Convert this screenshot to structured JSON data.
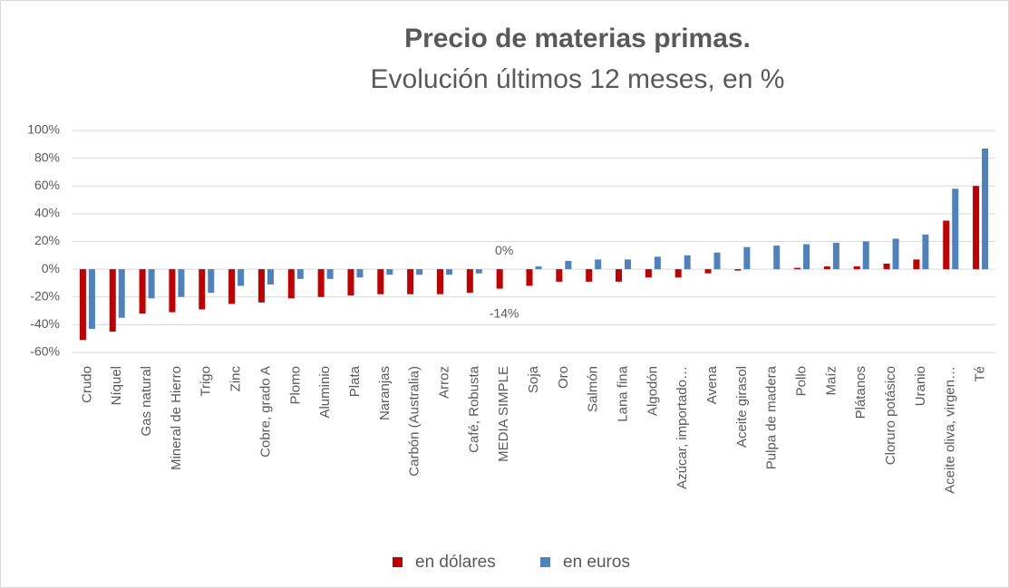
{
  "chart_data": {
    "type": "bar",
    "title": "Precio de materias primas.",
    "subtitle": "Evolución últimos 12 meses, en %",
    "categories": [
      "Crudo",
      "Níquel",
      "Gas natural",
      "Mineral de Hierro",
      "Trigo",
      "Zinc",
      "Cobre, grado A",
      "Plomo",
      "Aluminio",
      "Plata",
      "Naranjas",
      "Carbón (Australia)",
      "Arroz",
      "Café, Robusta",
      "MEDIA SIMPLE",
      "Soja",
      "Oro",
      "Salmón",
      "Lana fina",
      "Algodón",
      "Azúcar, importado…",
      "Avena",
      "Aceite girasol",
      "Pulpa de madera",
      "Pollo",
      "Maíz",
      "Plátanos",
      "Cloruro potásico",
      "Uranio",
      "Aceite oliva, virgen…",
      "Té"
    ],
    "series": [
      {
        "name": "en dólares",
        "color": "#c00000",
        "values": [
          -51,
          -45,
          -32,
          -31,
          -29,
          -25,
          -24,
          -21,
          -20,
          -19,
          -18,
          -18,
          -18,
          -17,
          -14,
          -12,
          -9,
          -9,
          -9,
          -6,
          -6,
          -3,
          -1,
          0,
          1,
          2,
          2,
          4,
          7,
          35,
          60
        ],
        "value_labels": [
          null,
          null,
          null,
          null,
          null,
          null,
          null,
          null,
          null,
          null,
          null,
          null,
          null,
          null,
          "-14%",
          null,
          null,
          null,
          null,
          null,
          null,
          null,
          null,
          null,
          null,
          null,
          null,
          null,
          null,
          null,
          null
        ]
      },
      {
        "name": "en euros",
        "color": "#4f81bd",
        "values": [
          -43,
          -35,
          -21,
          -20,
          -17,
          -12,
          -11,
          -7,
          -7,
          -6,
          -4,
          -4,
          -4,
          -3,
          0,
          2,
          6,
          7,
          7,
          9,
          10,
          12,
          16,
          17,
          18,
          19,
          20,
          22,
          25,
          58,
          87
        ],
        "value_labels": [
          null,
          null,
          null,
          null,
          null,
          null,
          null,
          null,
          null,
          null,
          null,
          null,
          null,
          null,
          "0%",
          null,
          null,
          null,
          null,
          null,
          null,
          null,
          null,
          null,
          null,
          null,
          null,
          null,
          null,
          null,
          null
        ]
      }
    ],
    "ylim": [
      -60,
      100
    ],
    "yticks": [
      {
        "value": -60,
        "label": "-60%"
      },
      {
        "value": -40,
        "label": "-40%"
      },
      {
        "value": -20,
        "label": "-20%"
      },
      {
        "value": 0,
        "label": "0%"
      },
      {
        "value": 20,
        "label": "20%"
      },
      {
        "value": 40,
        "label": "40%"
      },
      {
        "value": 60,
        "label": "60%"
      },
      {
        "value": 80,
        "label": "80%"
      },
      {
        "value": 100,
        "label": "100%"
      }
    ],
    "grid": true,
    "legend": "bottom"
  }
}
